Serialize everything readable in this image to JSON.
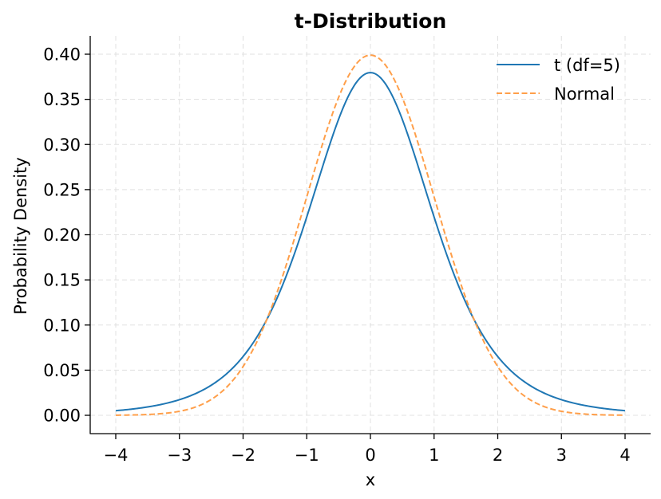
{
  "chart_data": {
    "type": "line",
    "title": "t-Distribution",
    "xlabel": "x",
    "ylabel": "Probability Density",
    "xlim": [
      -4.4,
      4.4
    ],
    "ylim": [
      -0.02,
      0.42
    ],
    "x_ticks": [
      "−4",
      "−3",
      "−2",
      "−1",
      "0",
      "1",
      "2",
      "3",
      "4"
    ],
    "x_tick_values": [
      -4,
      -3,
      -2,
      -1,
      0,
      1,
      2,
      3,
      4
    ],
    "y_ticks": [
      "0.00",
      "0.05",
      "0.10",
      "0.15",
      "0.20",
      "0.25",
      "0.30",
      "0.35",
      "0.40"
    ],
    "y_tick_values": [
      0,
      0.05,
      0.1,
      0.15,
      0.2,
      0.25,
      0.3,
      0.35,
      0.4
    ],
    "grid": true,
    "legend_position": "upper right",
    "x": [
      -4,
      -3.5,
      -3,
      -2.5,
      -2,
      -1.5,
      -1,
      -0.5,
      0,
      0.5,
      1,
      1.5,
      2,
      2.5,
      3,
      3.5,
      4
    ],
    "series": [
      {
        "name": "t (df=5)",
        "color": "#1f77b4",
        "style": "solid",
        "values": [
          0.0051,
          0.0099,
          0.0173,
          0.0329,
          0.0651,
          0.1245,
          0.2197,
          0.3295,
          0.3796,
          0.3295,
          0.2197,
          0.1245,
          0.0651,
          0.0329,
          0.0173,
          0.0099,
          0.0051
        ]
      },
      {
        "name": "Normal",
        "color": "#ff7f0e",
        "style": "dashed",
        "values": [
          0.0001,
          0.0009,
          0.0044,
          0.0175,
          0.054,
          0.1295,
          0.242,
          0.3521,
          0.3989,
          0.3521,
          0.242,
          0.1295,
          0.054,
          0.0175,
          0.0044,
          0.0009,
          0.0001
        ]
      }
    ]
  }
}
